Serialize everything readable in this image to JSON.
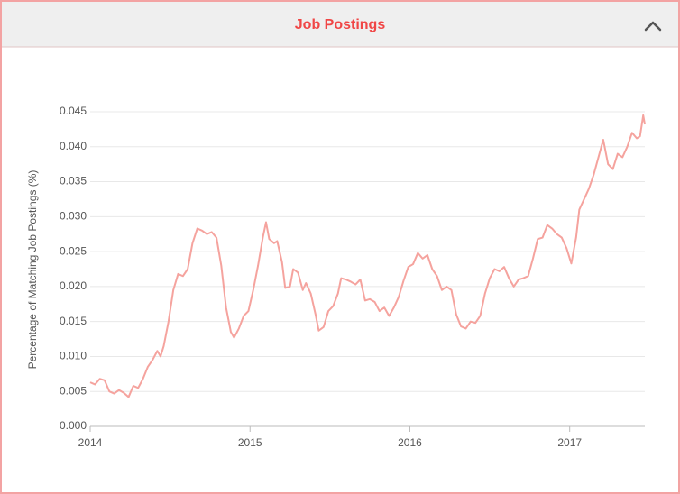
{
  "chart_data": {
    "type": "line",
    "title": "Job Postings",
    "ylabel": "Percentage of Matching Job Postings (%)",
    "xlim": [
      2014,
      2017.47
    ],
    "xticks": [
      2014,
      2015,
      2016,
      2017
    ],
    "ylim": [
      0,
      0.045
    ],
    "yticks": [
      {
        "value": 0,
        "label": "0.000"
      },
      0.005,
      {
        "value": 0.01,
        "label": "0.010"
      },
      0.015,
      {
        "value": 0.02,
        "label": "0.020"
      },
      0.025,
      {
        "value": 0.03,
        "label": "0.030"
      },
      0.035,
      {
        "value": 0.04,
        "label": "0.040"
      },
      0.045
    ],
    "grid": true,
    "series": [
      {
        "name": "Job Postings",
        "color": "#f5a39e",
        "x": [
          2014.0,
          2014.03,
          2014.06,
          2014.09,
          2014.12,
          2014.15,
          2014.18,
          2014.21,
          2014.24,
          2014.27,
          2014.3,
          2014.33,
          2014.36,
          2014.39,
          2014.42,
          2014.44,
          2014.46,
          2014.49,
          2014.52,
          2014.55,
          2014.58,
          2014.61,
          2014.64,
          2014.67,
          2014.7,
          2014.73,
          2014.76,
          2014.79,
          2014.82,
          2014.85,
          2014.88,
          2014.9,
          2014.93,
          2014.96,
          2014.99,
          2015.02,
          2015.05,
          2015.08,
          2015.1,
          2015.12,
          2015.15,
          2015.17,
          2015.2,
          2015.22,
          2015.25,
          2015.27,
          2015.3,
          2015.33,
          2015.35,
          2015.38,
          2015.41,
          2015.43,
          2015.46,
          2015.49,
          2015.52,
          2015.55,
          2015.57,
          2015.6,
          2015.63,
          2015.66,
          2015.69,
          2015.72,
          2015.75,
          2015.78,
          2015.81,
          2015.84,
          2015.87,
          2015.9,
          2015.93,
          2015.96,
          2015.99,
          2016.02,
          2016.05,
          2016.08,
          2016.11,
          2016.14,
          2016.17,
          2016.2,
          2016.23,
          2016.26,
          2016.29,
          2016.32,
          2016.35,
          2016.38,
          2016.41,
          2016.44,
          2016.47,
          2016.5,
          2016.53,
          2016.56,
          2016.59,
          2016.62,
          2016.65,
          2016.68,
          2016.71,
          2016.74,
          2016.77,
          2016.8,
          2016.83,
          2016.86,
          2016.89,
          2016.92,
          2016.95,
          2016.98,
          2017.01,
          2017.04,
          2017.06,
          2017.09,
          2017.12,
          2017.15,
          2017.18,
          2017.21,
          2017.24,
          2017.27,
          2017.3,
          2017.33,
          2017.36,
          2017.39,
          2017.42,
          2017.44,
          2017.46,
          2017.47
        ],
        "values": [
          0.0063,
          0.006,
          0.0068,
          0.0066,
          0.005,
          0.0047,
          0.0052,
          0.0048,
          0.0042,
          0.0058,
          0.0055,
          0.0068,
          0.0085,
          0.0095,
          0.0108,
          0.01,
          0.0115,
          0.015,
          0.0195,
          0.0218,
          0.0215,
          0.0225,
          0.0262,
          0.0283,
          0.028,
          0.0275,
          0.0278,
          0.027,
          0.023,
          0.017,
          0.0135,
          0.0127,
          0.014,
          0.0158,
          0.0165,
          0.0195,
          0.023,
          0.027,
          0.0292,
          0.0268,
          0.0262,
          0.0265,
          0.0235,
          0.0198,
          0.02,
          0.0225,
          0.022,
          0.0195,
          0.0205,
          0.019,
          0.016,
          0.0137,
          0.0142,
          0.0165,
          0.0172,
          0.019,
          0.0212,
          0.021,
          0.0207,
          0.0203,
          0.021,
          0.018,
          0.0182,
          0.0178,
          0.0165,
          0.017,
          0.0158,
          0.017,
          0.0185,
          0.0208,
          0.0228,
          0.0232,
          0.0248,
          0.024,
          0.0245,
          0.0225,
          0.0215,
          0.0195,
          0.02,
          0.0195,
          0.016,
          0.0143,
          0.014,
          0.015,
          0.0148,
          0.0158,
          0.019,
          0.0212,
          0.0225,
          0.0222,
          0.0228,
          0.0212,
          0.02,
          0.021,
          0.0212,
          0.0215,
          0.024,
          0.0268,
          0.027,
          0.0288,
          0.0283,
          0.0275,
          0.027,
          0.0255,
          0.0233,
          0.027,
          0.031,
          0.0325,
          0.034,
          0.036,
          0.0385,
          0.041,
          0.0375,
          0.0368,
          0.039,
          0.0385,
          0.04,
          0.042,
          0.0412,
          0.0415,
          0.0445,
          0.0432
        ]
      }
    ]
  }
}
